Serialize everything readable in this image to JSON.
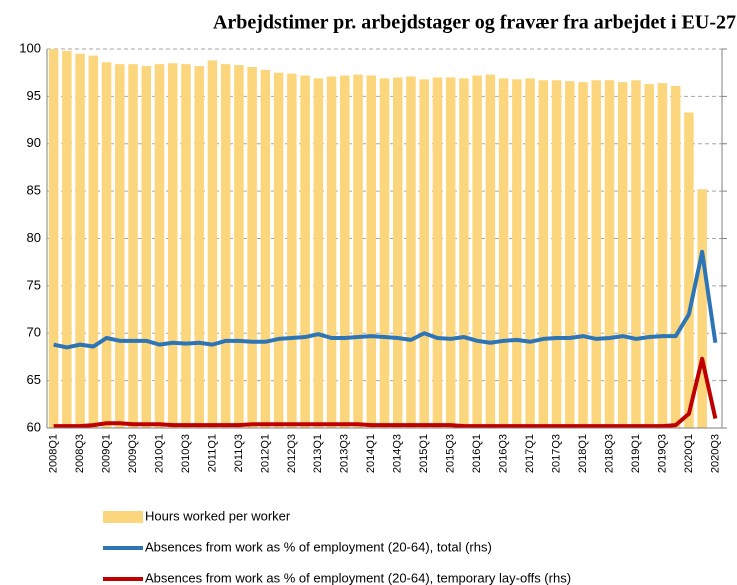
{
  "chart_data": {
    "type": "bar",
    "title": "Arbejdstimer pr. arbejdstager og fravær fra arbejdet i EU-27",
    "categories": [
      "2008Q1",
      null,
      "2008Q3",
      null,
      "2009Q1",
      null,
      "2009Q3",
      null,
      "2010Q1",
      null,
      "2010Q3",
      null,
      "2011Q1",
      null,
      "2011Q3",
      null,
      "2012Q1",
      null,
      "2012Q3",
      null,
      "2013Q1",
      null,
      "2013Q3",
      null,
      "2014Q1",
      null,
      "2014Q3",
      null,
      "2015Q1",
      null,
      "2015Q3",
      null,
      "2016Q1",
      null,
      "2016Q3",
      null,
      "2017Q1",
      null,
      "2017Q3",
      null,
      "2018Q1",
      null,
      "2018Q3",
      null,
      "2019Q1",
      null,
      "2019Q3",
      null,
      "2020Q1",
      null,
      "2020Q3"
    ],
    "series": [
      {
        "name": "Hours worked per worker",
        "type": "bar",
        "color": "#fcd67c",
        "values": [
          100,
          99.8,
          99.5,
          99.3,
          98.6,
          98.4,
          98.4,
          98.2,
          98.4,
          98.5,
          98.4,
          98.2,
          98.8,
          98.4,
          98.3,
          98.1,
          97.8,
          97.5,
          97.4,
          97.2,
          96.9,
          97.1,
          97.2,
          97.3,
          97.2,
          96.9,
          97.0,
          97.1,
          96.8,
          97.0,
          97.0,
          96.9,
          97.2,
          97.3,
          96.9,
          96.8,
          96.9,
          96.7,
          96.7,
          96.6,
          96.5,
          96.7,
          96.7,
          96.5,
          96.7,
          96.3,
          96.4,
          96.1,
          93.3,
          85.2,
          null
        ]
      },
      {
        "name": "Absences from work as % of employment (20-64), total (rhs)",
        "type": "line",
        "color": "#2e75b6",
        "values": [
          68.8,
          68.5,
          68.8,
          68.6,
          69.5,
          69.2,
          69.2,
          69.2,
          68.8,
          69.0,
          68.9,
          69.0,
          68.8,
          69.2,
          69.2,
          69.1,
          69.1,
          69.4,
          69.5,
          69.6,
          69.9,
          69.5,
          69.5,
          69.6,
          69.7,
          69.6,
          69.5,
          69.3,
          70.0,
          69.5,
          69.4,
          69.6,
          69.2,
          69.0,
          69.2,
          69.3,
          69.1,
          69.4,
          69.5,
          69.5,
          69.7,
          69.4,
          69.5,
          69.7,
          69.4,
          69.6,
          69.7,
          69.7,
          72.0,
          78.6,
          69.0
        ]
      },
      {
        "name": "Absences from work as % of employment (20-64), temporary lay-offs (rhs)",
        "type": "line",
        "color": "#c00000",
        "values": [
          60.2,
          60.2,
          60.2,
          60.3,
          60.5,
          60.5,
          60.4,
          60.4,
          60.4,
          60.3,
          60.3,
          60.3,
          60.3,
          60.3,
          60.3,
          60.4,
          60.4,
          60.4,
          60.4,
          60.4,
          60.4,
          60.4,
          60.4,
          60.4,
          60.3,
          60.3,
          60.3,
          60.3,
          60.3,
          60.3,
          60.3,
          60.2,
          60.2,
          60.2,
          60.2,
          60.2,
          60.2,
          60.2,
          60.2,
          60.2,
          60.2,
          60.2,
          60.2,
          60.2,
          60.2,
          60.2,
          60.2,
          60.3,
          61.5,
          67.3,
          61.0
        ]
      }
    ],
    "ylim": [
      60,
      100
    ],
    "yticks": [
      60,
      65,
      70,
      75,
      80,
      85,
      90,
      95,
      100
    ],
    "grid": true
  }
}
